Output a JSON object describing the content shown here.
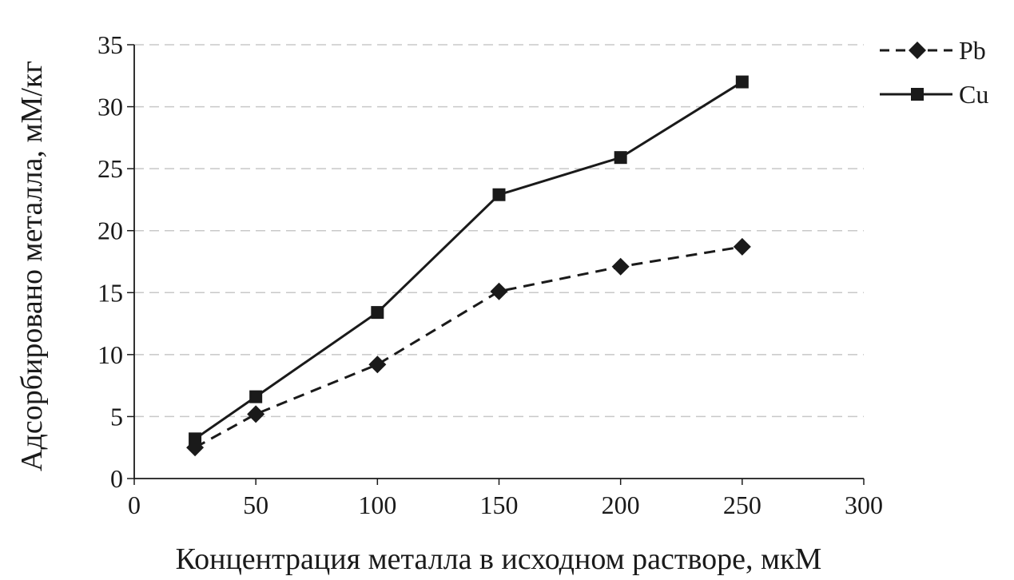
{
  "chart_data": {
    "type": "line",
    "title": "",
    "xlabel": "Концентрация металла в исходном растворе, мкМ",
    "ylabel": "Адсорбировано металла, мМ/кг",
    "xlim": [
      0,
      300
    ],
    "ylim": [
      0,
      35
    ],
    "xticks": [
      "0",
      "50",
      "100",
      "150",
      "200",
      "250",
      "300"
    ],
    "yticks": [
      "0",
      "5",
      "10",
      "15",
      "20",
      "25",
      "30",
      "35"
    ],
    "grid": "horizontal dashed",
    "legend_position": "top-right",
    "series": [
      {
        "name": "Pb",
        "line": "dashed",
        "marker": "diamond",
        "color": "#1a1a1a",
        "x": [
          25,
          50,
          100,
          150,
          200,
          250
        ],
        "y": [
          2.5,
          5.2,
          9.2,
          15.1,
          17.1,
          18.7
        ]
      },
      {
        "name": "Cu",
        "line": "solid",
        "marker": "square",
        "color": "#1a1a1a",
        "x": [
          25,
          50,
          100,
          150,
          200,
          250
        ],
        "y": [
          3.2,
          6.6,
          13.4,
          22.9,
          25.9,
          32.0
        ]
      }
    ]
  }
}
